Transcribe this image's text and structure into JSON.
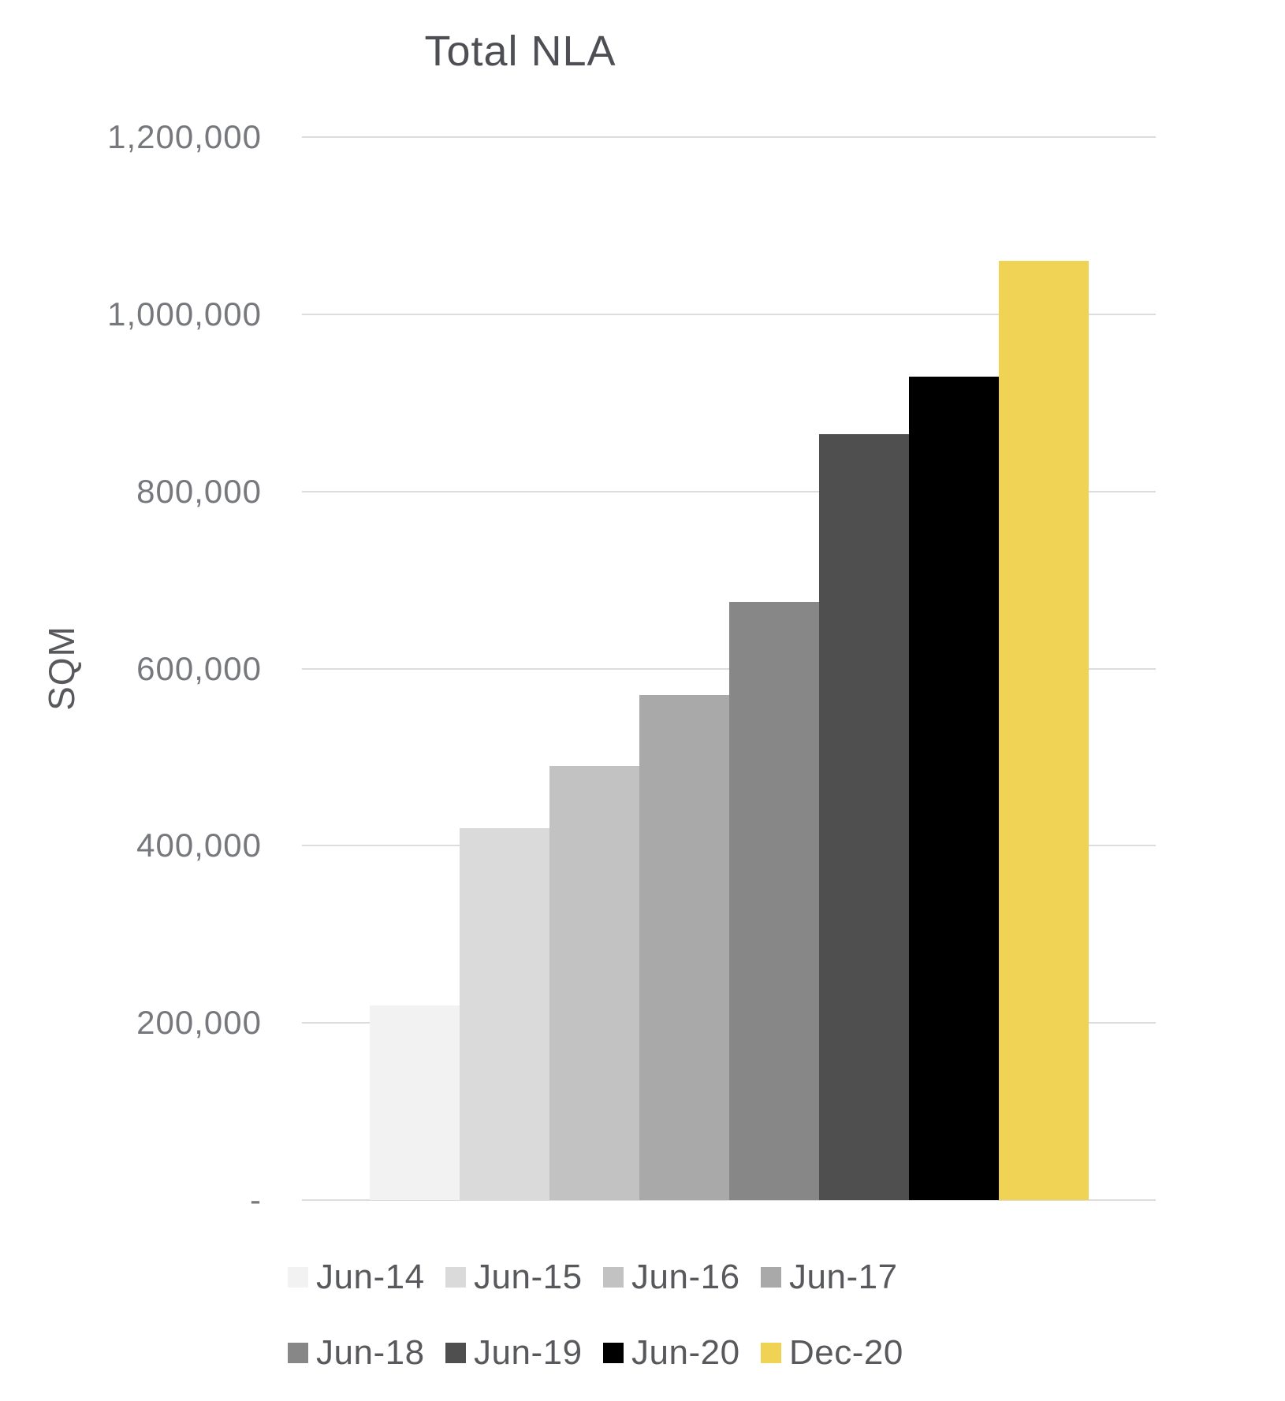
{
  "chart_data": {
    "type": "bar",
    "title": "Total NLA",
    "ylabel": "SQM",
    "xlabel": "",
    "categories": [
      "Jun-14",
      "Jun-15",
      "Jun-16",
      "Jun-17",
      "Jun-18",
      "Jun-19",
      "Jun-20",
      "Dec-20"
    ],
    "values": [
      220000,
      420000,
      490000,
      570000,
      675000,
      865000,
      930000,
      1060000
    ],
    "bar_colors": [
      "#F2F2F2",
      "#DADADA",
      "#C2C2C2",
      "#A9A9A9",
      "#878787",
      "#4F4F4F",
      "#000000",
      "#F0D355"
    ],
    "ylim": [
      0,
      1200000
    ],
    "yticks": [
      {
        "label": "1,200,000",
        "value": 1200000
      },
      {
        "label": "1,000,000",
        "value": 1000000
      },
      {
        "label": "800,000",
        "value": 800000
      },
      {
        "label": "600,000",
        "value": 600000
      },
      {
        "label": "400,000",
        "value": 400000
      },
      {
        "label": "200,000",
        "value": 200000
      },
      {
        "label": "-",
        "value": 0
      }
    ],
    "grid": true,
    "legend_position": "bottom",
    "legend_rows": [
      [
        "Jun-14",
        "Jun-15",
        "Jun-16",
        "Jun-17"
      ],
      [
        "Jun-18",
        "Jun-19",
        "Jun-20",
        "Dec-20"
      ]
    ]
  },
  "appearance": {
    "background": "#FFFFFF",
    "title_color": "#4D4F54",
    "axis_label_color": "#76787D",
    "legend_text_color": "#58595C",
    "gridline_color": "#DCDCDC",
    "accent_yellow": "#F0D355"
  }
}
